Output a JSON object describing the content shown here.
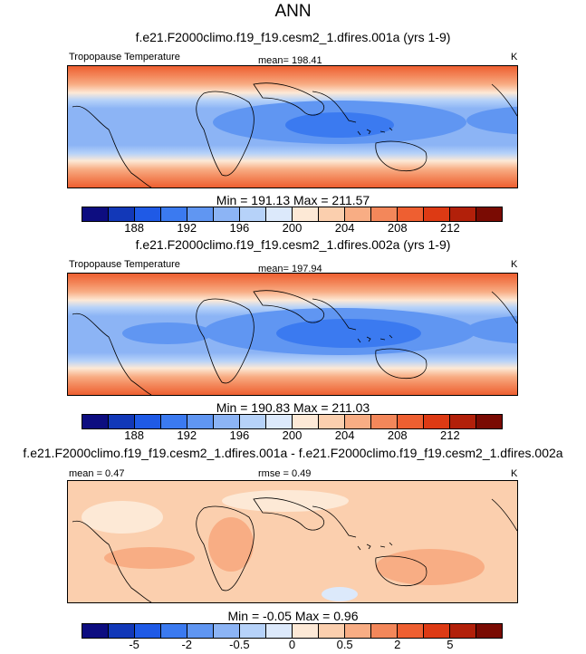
{
  "page_title": "ANN",
  "panels": [
    {
      "case": "f.e21.F2000climo.f19_f19.cesm2_1.dfires.001a (yrs 1-9)",
      "variable": "Tropopause Temperature",
      "mean_label": "mean= 198.41",
      "rmse_label": "",
      "units": "K",
      "minmax": "Min = 191.13 Max = 211.57",
      "colorbar": {
        "colors": [
          "#0d0d80",
          "#1238b8",
          "#1f5ae6",
          "#3b7af0",
          "#6096f2",
          "#8cb4f5",
          "#b6d2f9",
          "#dce9fb",
          "#fde9d6",
          "#fbcfae",
          "#f8ad84",
          "#f3875a",
          "#ee5f31",
          "#dd3a14",
          "#b2200a",
          "#7a0b03"
        ],
        "ticks": [
          "188",
          "192",
          "196",
          "200",
          "204",
          "208",
          "212"
        ]
      }
    },
    {
      "case": "f.e21.F2000climo.f19_f19.cesm2_1.dfires.002a (yrs 1-9)",
      "variable": "Tropopause Temperature",
      "mean_label": "mean= 197.94",
      "rmse_label": "",
      "units": "K",
      "minmax": "Min = 190.83 Max = 211.03",
      "colorbar": {
        "colors": [
          "#0d0d80",
          "#1238b8",
          "#1f5ae6",
          "#3b7af0",
          "#6096f2",
          "#8cb4f5",
          "#b6d2f9",
          "#dce9fb",
          "#fde9d6",
          "#fbcfae",
          "#f8ad84",
          "#f3875a",
          "#ee5f31",
          "#dd3a14",
          "#b2200a",
          "#7a0b03"
        ],
        "ticks": [
          "188",
          "192",
          "196",
          "200",
          "204",
          "208",
          "212"
        ]
      }
    },
    {
      "case": "f.e21.F2000climo.f19_f19.cesm2_1.dfires.001a - f.e21.F2000climo.f19_f19.cesm2_1.dfires.002a",
      "variable": "",
      "mean_label": "mean =  0.47",
      "rmse_label": "rmse =  0.49",
      "units": "K",
      "minmax": "Min =  -0.05 Max =   0.96",
      "colorbar": {
        "colors": [
          "#0d0d80",
          "#1238b8",
          "#1f5ae6",
          "#3b7af0",
          "#6096f2",
          "#8cb4f5",
          "#b6d2f9",
          "#dce9fb",
          "#fde9d6",
          "#fbcfae",
          "#f8ad84",
          "#f3875a",
          "#ee5f31",
          "#dd3a14",
          "#b2200a",
          "#7a0b03"
        ],
        "ticks": [
          "-5",
          "-2",
          "-0.5",
          "0",
          "0.5",
          "2",
          "5"
        ]
      }
    }
  ],
  "chart_data": [
    {
      "type": "heatmap",
      "title": "f.e21.F2000climo.f19_f19.cesm2_1.dfires.001a (yrs 1-9)",
      "variable": "Tropopause Temperature",
      "units": "K",
      "mean": 198.41,
      "min": 191.13,
      "max": 211.57,
      "colorbar_ticks": [
        188,
        192,
        196,
        200,
        204,
        208,
        212
      ]
    },
    {
      "type": "heatmap",
      "title": "f.e21.F2000climo.f19_f19.cesm2_1.dfires.002a (yrs 1-9)",
      "variable": "Tropopause Temperature",
      "units": "K",
      "mean": 197.94,
      "min": 190.83,
      "max": 211.03,
      "colorbar_ticks": [
        188,
        192,
        196,
        200,
        204,
        208,
        212
      ]
    },
    {
      "type": "heatmap",
      "title": "f.e21.F2000climo.f19_f19.cesm2_1.dfires.001a - f.e21.F2000climo.f19_f19.cesm2_1.dfires.002a",
      "units": "K",
      "mean": 0.47,
      "rmse": 0.49,
      "min": -0.05,
      "max": 0.96,
      "colorbar_ticks": [
        -5,
        -2,
        -0.5,
        0,
        0.5,
        2,
        5
      ]
    }
  ]
}
